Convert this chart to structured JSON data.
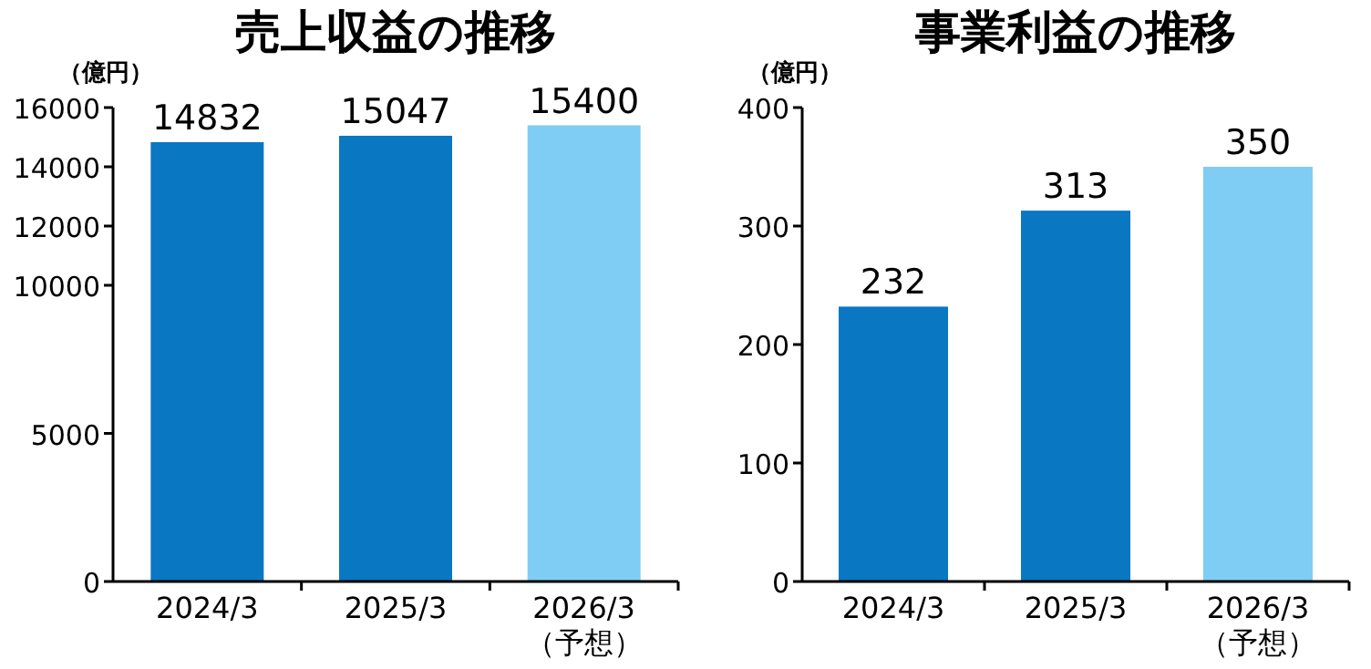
{
  "chart_data": [
    {
      "type": "bar",
      "title": "売上収益の推移",
      "ylabel": "（億円）",
      "categories": [
        "2024/3",
        "2025/3",
        "2026/3\n（予想）"
      ],
      "values": [
        14832,
        15047,
        15400
      ],
      "colors": [
        "#0a77c2",
        "#0a77c2",
        "#7fcdf4"
      ],
      "ylim": [
        0,
        16000
      ],
      "yticks": [
        0,
        5000,
        10000,
        12000,
        14000,
        16000
      ],
      "data_labels": true,
      "grid": false
    },
    {
      "type": "bar",
      "title": "事業利益の推移",
      "ylabel": "（億円）",
      "categories": [
        "2024/3",
        "2025/3",
        "2026/3\n（予想）"
      ],
      "values": [
        232,
        313,
        350
      ],
      "colors": [
        "#0a77c2",
        "#0a77c2",
        "#7fcdf4"
      ],
      "ylim": [
        0,
        400
      ],
      "yticks": [
        0,
        100,
        200,
        300,
        400
      ],
      "data_labels": true,
      "grid": false
    }
  ]
}
